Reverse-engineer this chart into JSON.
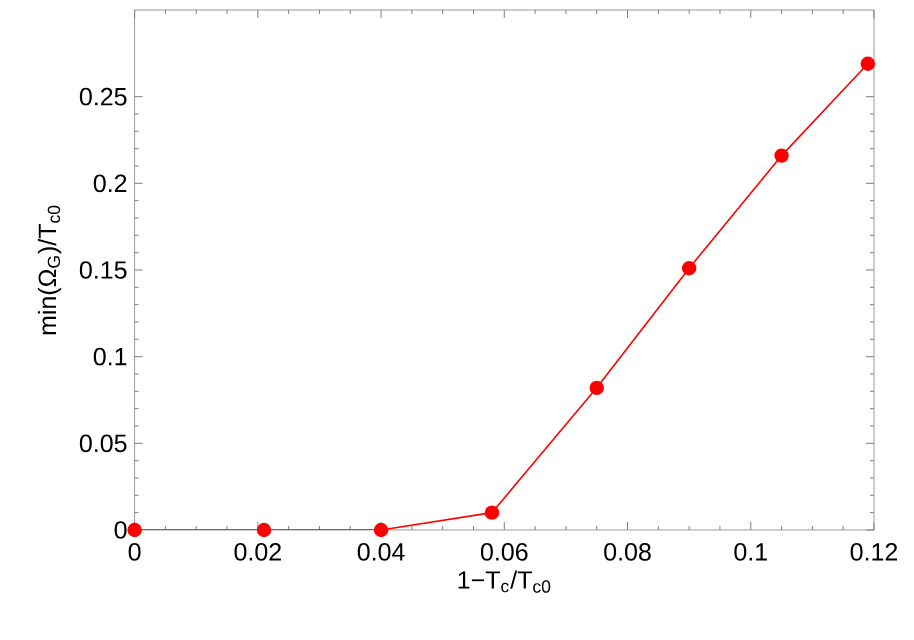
{
  "chart_data": {
    "type": "line",
    "xlabel": "1−T$_{c}$/T$_{c0}$",
    "ylabel": "min(Ω$_{G}$)/T$_{c0}$",
    "x": [
      0,
      0.021,
      0.04,
      0.058,
      0.075,
      0.09,
      0.105,
      0.119
    ],
    "series": [
      {
        "color": "#ff0000",
        "values": [
          0,
          0,
          0,
          0.01,
          0.082,
          0.151,
          0.216,
          0.269
        ]
      }
    ],
    "xlim": [
      0,
      0.12
    ],
    "ylim": [
      0,
      0.3
    ],
    "xticks": [
      0,
      0.02,
      0.04,
      0.06,
      0.08,
      0.1,
      0.12
    ],
    "yticks": [
      0,
      0.05,
      0.1,
      0.15,
      0.2,
      0.25
    ],
    "marker": "circle",
    "line_style": "solid",
    "grid": false
  }
}
